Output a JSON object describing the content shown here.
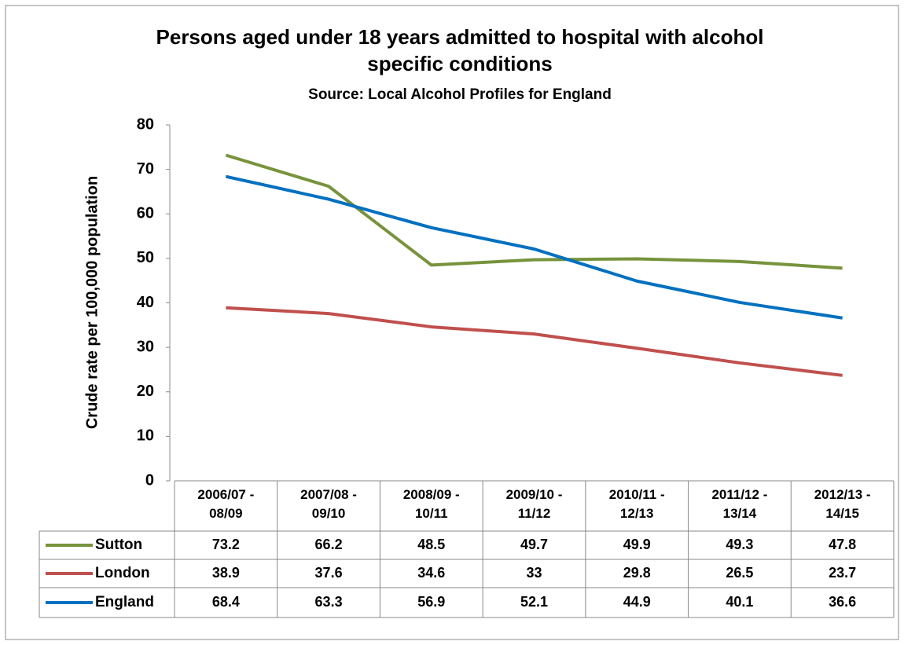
{
  "chart_data": {
    "type": "line",
    "title": "Persons aged under 18 years admitted to hospital with alcohol specific conditions",
    "subtitle": "Source: Local Alcohol Profiles for England",
    "y_label": "Crude rate per 100,000 population",
    "categories": [
      "2006/07 - 08/09",
      "2007/08 - 09/10",
      "2008/09 - 10/11",
      "2009/10 - 11/12",
      "2010/11 - 12/13",
      "2011/12 - 13/14",
      "2012/13 - 14/15"
    ],
    "series": [
      {
        "name": "Sutton",
        "color": "#77933c",
        "values": [
          73.2,
          66.2,
          48.5,
          49.7,
          49.9,
          49.3,
          47.8
        ]
      },
      {
        "name": "London",
        "color": "#c0504d",
        "values": [
          38.9,
          37.6,
          34.6,
          33,
          29.8,
          26.5,
          23.7
        ]
      },
      {
        "name": "England",
        "color": "#0070c0",
        "values": [
          68.4,
          63.3,
          56.9,
          52.1,
          44.9,
          40.1,
          36.6
        ]
      }
    ],
    "ylim": [
      0,
      80
    ],
    "yticks": [
      0,
      10,
      20,
      30,
      40,
      50,
      60,
      70,
      80
    ],
    "grid": false,
    "data_table": true
  }
}
